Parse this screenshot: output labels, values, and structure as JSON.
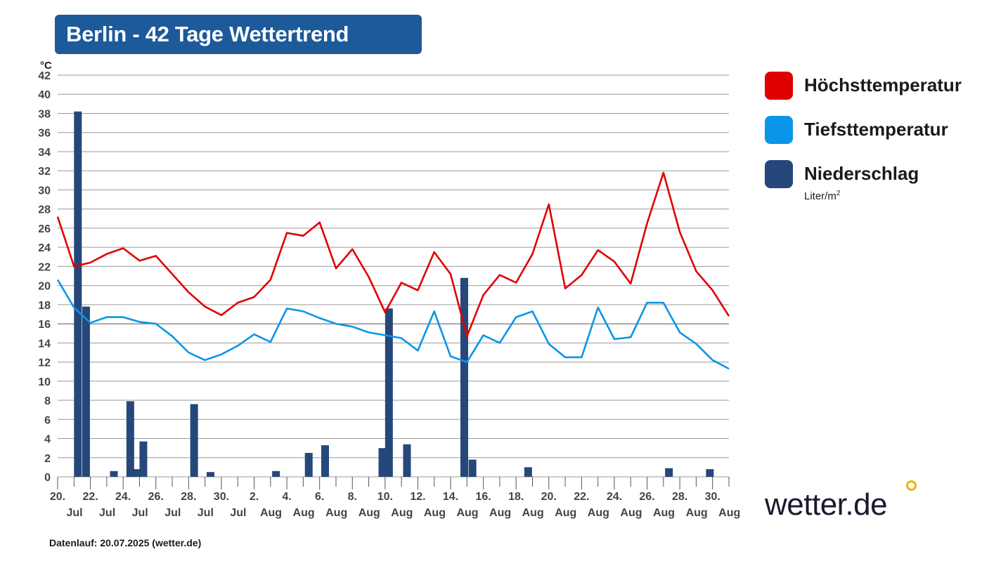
{
  "title": "Berlin - 42 Tage Wettertrend",
  "unit_temp": "°C",
  "legend": [
    {
      "label": "Höchsttemperatur",
      "color": "#e00000"
    },
    {
      "label": "Tiefsttemperatur",
      "color": "#0a96e8"
    },
    {
      "label": "Niederschlag",
      "color": "#26477a",
      "unit": "Liter/m",
      "unit_sup": "2"
    }
  ],
  "logo": "wetter.de",
  "footer": "Datenlauf: 20.07.2025 (wetter.de)",
  "chart_data": {
    "type": "line+bar",
    "title": "Berlin - 42 Tage Wettertrend",
    "ylabel": "°C",
    "ylim": [
      0,
      42
    ],
    "yticks": [
      0,
      2,
      4,
      6,
      8,
      10,
      12,
      14,
      16,
      18,
      20,
      22,
      24,
      26,
      28,
      30,
      32,
      34,
      36,
      38,
      40,
      42
    ],
    "xticks": [
      {
        "day": "20.",
        "month": "Jul"
      },
      {
        "day": "22.",
        "month": "Jul"
      },
      {
        "day": "24.",
        "month": "Jul"
      },
      {
        "day": "26.",
        "month": "Jul"
      },
      {
        "day": "28.",
        "month": "Jul"
      },
      {
        "day": "30.",
        "month": "Jul"
      },
      {
        "day": "2.",
        "month": "Aug"
      },
      {
        "day": "4.",
        "month": "Aug"
      },
      {
        "day": "6.",
        "month": "Aug"
      },
      {
        "day": "8.",
        "month": "Aug"
      },
      {
        "day": "10.",
        "month": "Aug"
      },
      {
        "day": "12.",
        "month": "Aug"
      },
      {
        "day": "14.",
        "month": "Aug"
      },
      {
        "day": "16.",
        "month": "Aug"
      },
      {
        "day": "18.",
        "month": "Aug"
      },
      {
        "day": "20.",
        "month": "Aug"
      },
      {
        "day": "22.",
        "month": "Aug"
      },
      {
        "day": "24.",
        "month": "Aug"
      },
      {
        "day": "26.",
        "month": "Aug"
      },
      {
        "day": "28.",
        "month": "Aug"
      },
      {
        "day": "30.",
        "month": "Aug"
      }
    ],
    "days": 42,
    "series": [
      {
        "name": "Höchsttemperatur",
        "color": "#e00000",
        "values": [
          27.2,
          22.0,
          22.4,
          23.3,
          23.9,
          22.6,
          23.1,
          21.2,
          19.3,
          17.8,
          16.9,
          18.2,
          18.8,
          20.6,
          25.5,
          25.2,
          26.6,
          21.8,
          23.8,
          20.9,
          17.2,
          20.3,
          19.5,
          23.5,
          21.2,
          14.7,
          19.0,
          21.1,
          20.3,
          23.3,
          28.5,
          19.7,
          21.1,
          23.7,
          22.5,
          20.2,
          26.5,
          31.8,
          25.6,
          21.5,
          19.5,
          16.8
        ]
      },
      {
        "name": "Tiefsttemperatur",
        "color": "#0a96e8",
        "values": [
          20.6,
          17.7,
          16.1,
          16.7,
          16.7,
          16.2,
          16.0,
          14.7,
          13.0,
          12.2,
          12.8,
          13.7,
          14.9,
          14.1,
          17.6,
          17.3,
          16.6,
          16.0,
          15.7,
          15.1,
          14.8,
          14.5,
          13.2,
          17.3,
          12.6,
          12.0,
          14.8,
          14.0,
          16.7,
          17.3,
          13.9,
          12.5,
          12.5,
          17.7,
          14.4,
          14.6,
          18.2,
          18.2,
          15.1,
          13.9,
          12.2,
          11.3
        ]
      }
    ],
    "precipitation": {
      "name": "Niederschlag",
      "unit": "Liter/m²",
      "color": "#26477a",
      "bars": [
        {
          "day": 1,
          "value": 38.2
        },
        {
          "day": 1.5,
          "value": 17.8
        },
        {
          "day": 3.2,
          "value": 0.6
        },
        {
          "day": 4.2,
          "value": 7.9
        },
        {
          "day": 4.6,
          "value": 0.8
        },
        {
          "day": 5.0,
          "value": 3.7
        },
        {
          "day": 8.1,
          "value": 7.6
        },
        {
          "day": 9.1,
          "value": 0.5
        },
        {
          "day": 13.1,
          "value": 0.6
        },
        {
          "day": 15.1,
          "value": 2.5
        },
        {
          "day": 16.1,
          "value": 3.3
        },
        {
          "day": 19.6,
          "value": 3.0
        },
        {
          "day": 20.0,
          "value": 17.6
        },
        {
          "day": 21.1,
          "value": 3.4
        },
        {
          "day": 24.6,
          "value": 20.8
        },
        {
          "day": 25.1,
          "value": 1.8
        },
        {
          "day": 28.5,
          "value": 1.0
        },
        {
          "day": 37.1,
          "value": 0.9
        },
        {
          "day": 39.6,
          "value": 0.8
        }
      ]
    }
  }
}
